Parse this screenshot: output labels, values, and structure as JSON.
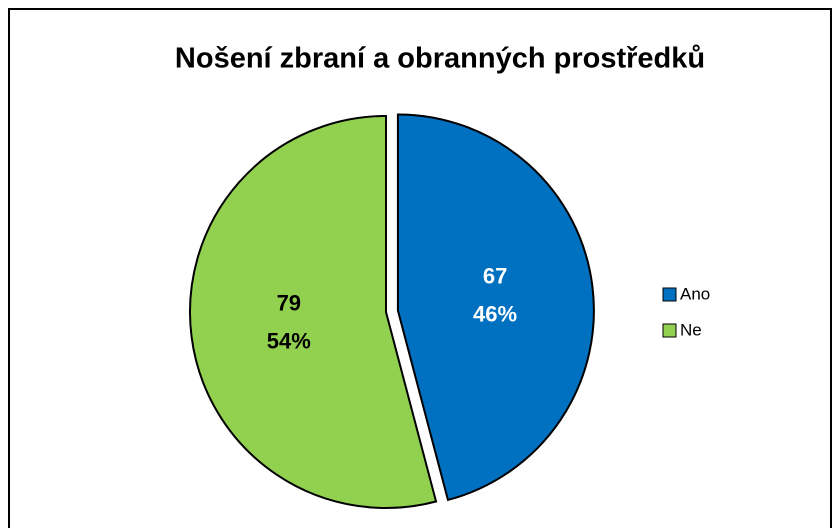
{
  "chart_data": {
    "type": "pie",
    "title": "Nošení zbraní a obranných prostředků",
    "categories": [
      "Ano",
      "Ne"
    ],
    "values": [
      67,
      79
    ],
    "percent_labels": [
      "46%",
      "54%"
    ],
    "colors": [
      "#0070c0",
      "#92d050"
    ],
    "label_colors": [
      "#ffffff",
      "#000000"
    ],
    "exploded": [
      true,
      false
    ],
    "legend": "right"
  }
}
